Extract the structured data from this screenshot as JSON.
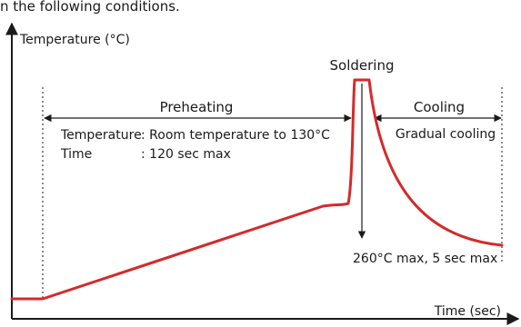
{
  "intro_text": "n the following conditions.",
  "axes": {
    "y_label": "Temperature (°C)",
    "x_label": "Time (sec)"
  },
  "phases": {
    "preheating": {
      "label": "Preheating",
      "conditions": {
        "temperature_label": "Temperature",
        "temperature_value": ": Room temperature to 130°C",
        "time_label": "Time",
        "time_value": ": 120 sec max"
      }
    },
    "soldering": {
      "label": "Soldering",
      "limit": "260°C max, 5 sec max"
    },
    "cooling": {
      "label": "Cooling",
      "note": "Gradual cooling"
    }
  },
  "colors": {
    "profile": "#d42a2a",
    "ink": "#1a1a1a"
  }
}
